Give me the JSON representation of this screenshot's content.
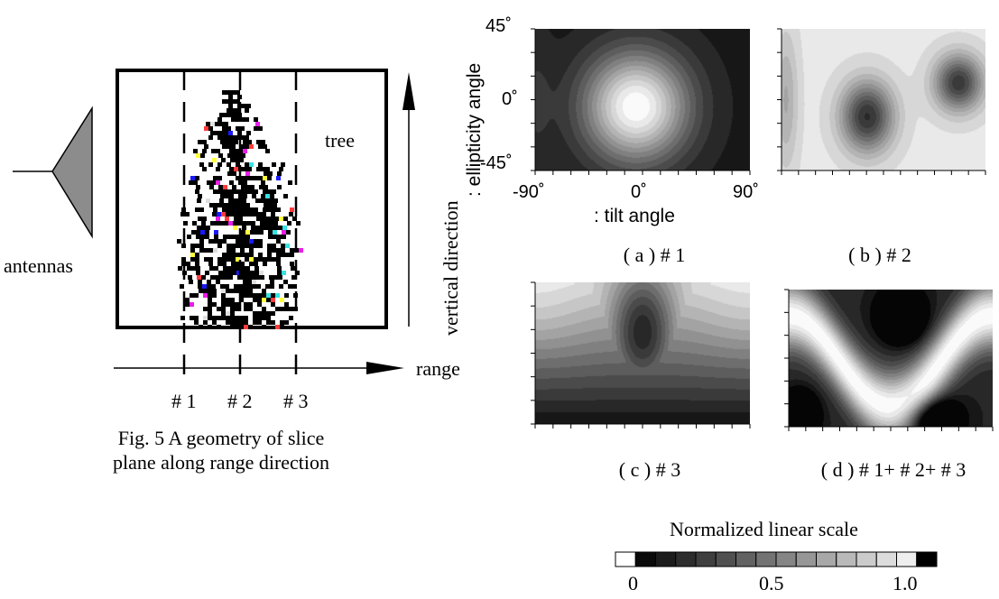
{
  "figure5": {
    "antenna_label": "antennas",
    "tree_label": "tree",
    "vertical_label": "vertical direction",
    "range_label": "range",
    "slices": [
      "# 1",
      "# 2",
      "# 3"
    ],
    "caption_line1": "Fig. 5  A geometry of slice",
    "caption_line2": "plane along range direction",
    "colors": {
      "antenna_fill": "#8c8c8c",
      "scatter_main": "#000000",
      "scatter_accents": [
        "#1a1aff",
        "#e81ee8",
        "#ffff3c",
        "#ff3c3c",
        "#38e0e0",
        "#e0e0e0"
      ]
    }
  },
  "panels": {
    "y_axis_label": ": ellipticity angle",
    "x_axis_label": ": tilt angle",
    "y_ticks": [
      "45˚",
      "0˚",
      "-45˚"
    ],
    "x_ticks": [
      "-90˚",
      "0˚",
      "90˚"
    ],
    "items": [
      {
        "id": "a",
        "label": "( a ) # 1"
      },
      {
        "id": "b",
        "label": "( b ) # 2"
      },
      {
        "id": "c",
        "label": "( c ) # 3"
      },
      {
        "id": "d",
        "label": "( d ) # 1+ # 2+ # 3"
      }
    ]
  },
  "scale": {
    "title": "Normalized linear scale",
    "ticks": [
      "0",
      "0.5",
      "1.0"
    ],
    "steps": 16
  }
}
